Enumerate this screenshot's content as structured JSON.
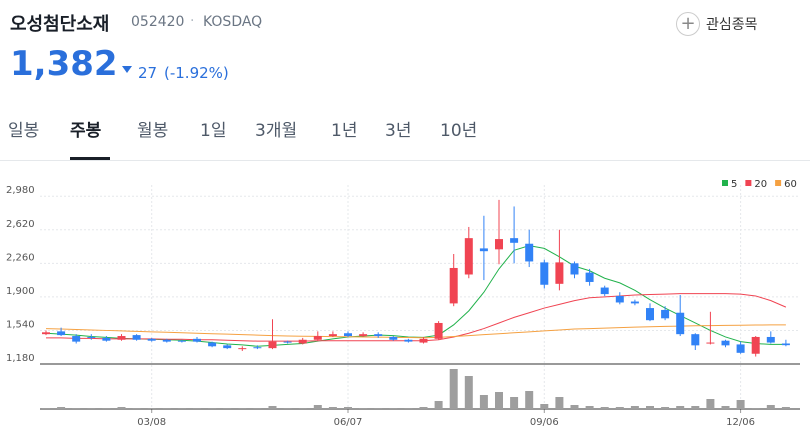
{
  "header": {
    "name": "오성첨단소재",
    "code": "052420",
    "separator": "·",
    "market": "KOSDAQ",
    "watchlist": "관심종목"
  },
  "quote": {
    "price": "1,382",
    "change": "27",
    "change_pct": "(-1.92%)"
  },
  "tabs": [
    "일봉",
    "주봉",
    "월봉",
    "1일",
    "3개월",
    "1년",
    "3년",
    "10년"
  ],
  "chart_data": {
    "type": "candlestick",
    "categories": [
      null,
      null,
      null,
      null,
      null,
      null,
      null,
      "03/08",
      null,
      null,
      null,
      null,
      null,
      null,
      null,
      null,
      null,
      null,
      null,
      null,
      "06/07",
      null,
      null,
      null,
      null,
      null,
      null,
      null,
      null,
      null,
      null,
      null,
      null,
      "09/06",
      null,
      null,
      null,
      null,
      null,
      null,
      null,
      null,
      null,
      null,
      null,
      null,
      "12/06",
      null,
      null,
      null
    ],
    "open": [
      1500,
      1530,
      1480,
      1470,
      1460,
      1440,
      1490,
      1450,
      1440,
      1430,
      1450,
      1410,
      1380,
      1340,
      1360,
      1350,
      1420,
      1400,
      1440,
      1480,
      1510,
      1480,
      1500,
      1470,
      1440,
      1410,
      1450,
      1830,
      2140,
      2420,
      2410,
      2530,
      2470,
      2270,
      2040,
      2260,
      2160,
      2000,
      1910,
      1850,
      1780,
      1760,
      1730,
      1500,
      1400,
      1430,
      1390,
      1290,
      1470,
      1400
    ],
    "high": [
      1540,
      1570,
      1500,
      1500,
      1480,
      1500,
      1500,
      1460,
      1450,
      1440,
      1470,
      1420,
      1390,
      1370,
      1380,
      1660,
      1430,
      1460,
      1530,
      1530,
      1530,
      1520,
      1520,
      1480,
      1450,
      1470,
      1640,
      2360,
      2650,
      2770,
      2940,
      2870,
      2620,
      2300,
      2620,
      2280,
      2200,
      2020,
      1950,
      1870,
      1830,
      1800,
      1920,
      1510,
      1740,
      1440,
      1420,
      1480,
      1530,
      1440
    ],
    "low": [
      1490,
      1480,
      1400,
      1440,
      1420,
      1430,
      1430,
      1420,
      1410,
      1410,
      1410,
      1360,
      1340,
      1320,
      1340,
      1340,
      1400,
      1390,
      1430,
      1470,
      1470,
      1470,
      1460,
      1430,
      1410,
      1400,
      1440,
      1800,
      2100,
      2080,
      2250,
      2260,
      2220,
      1990,
      1970,
      2100,
      2020,
      1910,
      1820,
      1810,
      1640,
      1650,
      1480,
      1330,
      1390,
      1360,
      1290,
      1260,
      1400,
      1370
    ],
    "close": [
      1520,
      1490,
      1420,
      1460,
      1430,
      1480,
      1440,
      1430,
      1420,
      1420,
      1420,
      1370,
      1350,
      1350,
      1350,
      1420,
      1410,
      1440,
      1480,
      1500,
      1480,
      1500,
      1480,
      1440,
      1420,
      1450,
      1620,
      2210,
      2530,
      2390,
      2520,
      2480,
      2280,
      2030,
      2270,
      2140,
      2060,
      1930,
      1840,
      1830,
      1650,
      1670,
      1500,
      1380,
      1410,
      1380,
      1300,
      1470,
      1410,
      1382
    ],
    "volume": [
      1,
      2,
      1,
      1,
      1,
      2,
      1,
      1,
      1,
      1,
      1,
      1,
      1,
      1,
      1,
      3,
      1,
      1,
      4,
      2,
      2,
      1,
      1,
      1,
      1,
      2,
      8,
      40,
      33,
      14,
      17,
      12,
      18,
      5,
      12,
      4,
      3,
      2,
      2,
      3,
      3,
      2,
      3,
      3,
      10,
      3,
      9,
      1,
      4,
      2
    ],
    "up_color": "#f04452",
    "down_color": "#3182f6",
    "series": [
      {
        "name": "5",
        "color": "#22b24c",
        "values": [
          1510,
          1500,
          1490,
          1475,
          1465,
          1455,
          1450,
          1445,
          1440,
          1435,
          1425,
          1410,
          1395,
          1385,
          1370,
          1380,
          1390,
          1400,
          1425,
          1450,
          1470,
          1480,
          1490,
          1485,
          1470,
          1465,
          1490,
          1600,
          1750,
          1950,
          2200,
          2400,
          2450,
          2420,
          2330,
          2230,
          2180,
          2100,
          2050,
          1970,
          1870,
          1780,
          1700,
          1620,
          1540,
          1470,
          1420,
          1400,
          1390,
          1390
        ]
      },
      {
        "name": "20",
        "color": "#f04452",
        "values": [
          1460,
          1460,
          1455,
          1455,
          1450,
          1450,
          1450,
          1450,
          1445,
          1445,
          1440,
          1440,
          1435,
          1430,
          1425,
          1425,
          1425,
          1425,
          1430,
          1430,
          1430,
          1430,
          1430,
          1430,
          1430,
          1430,
          1440,
          1470,
          1510,
          1560,
          1620,
          1680,
          1730,
          1780,
          1820,
          1860,
          1890,
          1900,
          1910,
          1920,
          1925,
          1930,
          1935,
          1935,
          1935,
          1935,
          1930,
          1910,
          1860,
          1790
        ]
      },
      {
        "name": "60",
        "color": "#f5a142",
        "values": [
          1560,
          1555,
          1550,
          1545,
          1540,
          1535,
          1530,
          1525,
          1520,
          1515,
          1510,
          1505,
          1500,
          1495,
          1490,
          1485,
          1480,
          1478,
          1476,
          1474,
          1472,
          1470,
          1468,
          1466,
          1464,
          1462,
          1465,
          1475,
          1485,
          1495,
          1505,
          1515,
          1525,
          1535,
          1545,
          1555,
          1560,
          1565,
          1570,
          1575,
          1580,
          1583,
          1586,
          1590,
          1592,
          1594,
          1596,
          1598,
          1600,
          1600
        ]
      }
    ],
    "ylim": [
      1180,
      3100
    ],
    "yticks": [
      {
        "value": 2980,
        "label": "2,980"
      },
      {
        "value": 2620,
        "label": "2,620"
      },
      {
        "value": 2260,
        "label": "2,260"
      },
      {
        "value": 1900,
        "label": "1,900"
      },
      {
        "value": 1540,
        "label": "1,540"
      },
      {
        "value": 1180,
        "label": "1,180"
      }
    ],
    "grid": true
  }
}
